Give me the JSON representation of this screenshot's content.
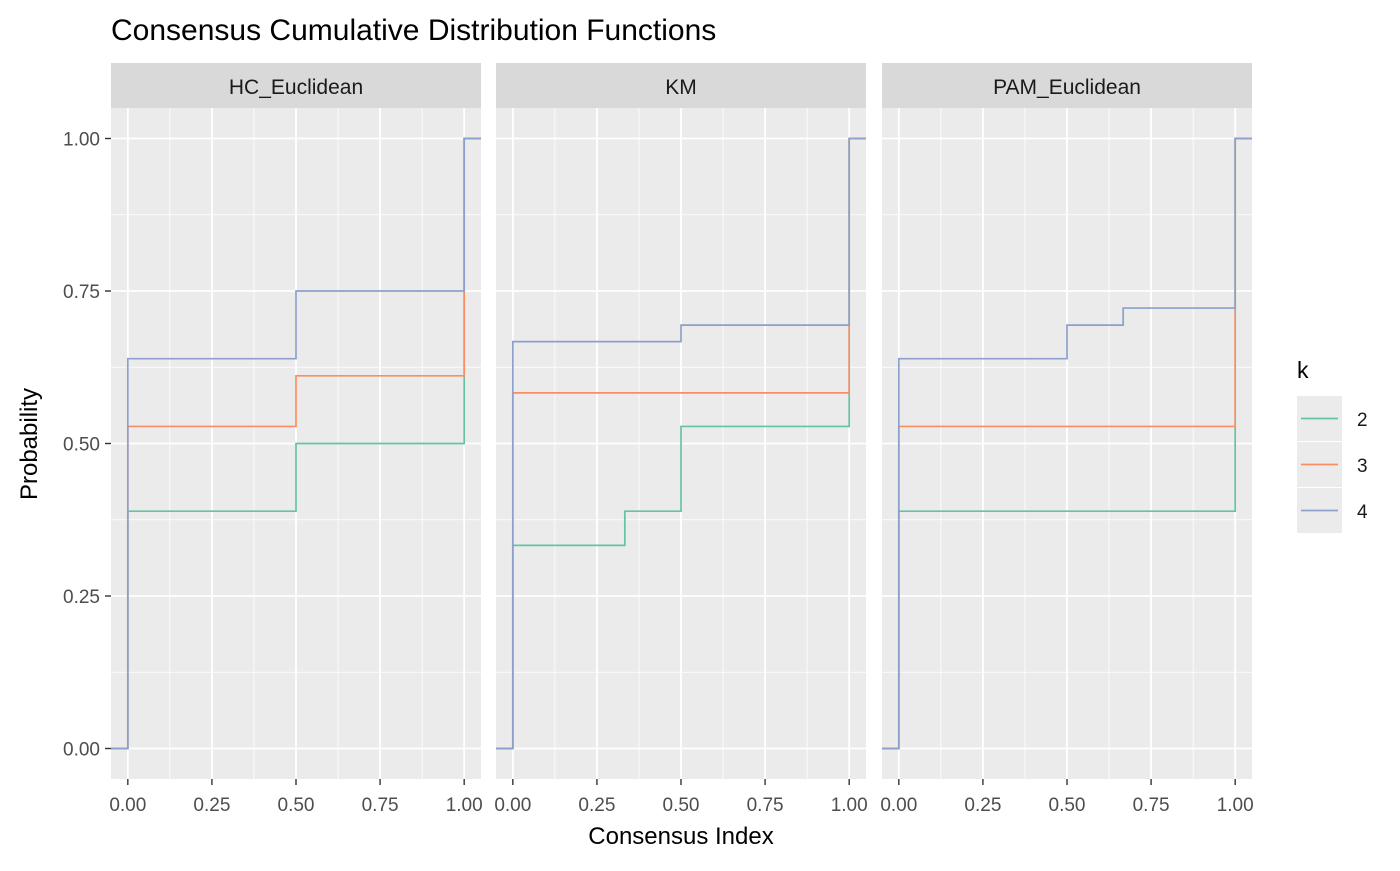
{
  "chart_data": {
    "type": "line",
    "subtype": "step",
    "title": "Consensus Cumulative Distribution Functions",
    "xlabel": "Consensus Index",
    "ylabel": "Probability",
    "xlim": [
      -0.05,
      1.05
    ],
    "ylim": [
      -0.05,
      1.05
    ],
    "x_ticks": [
      0,
      0.25,
      0.5,
      0.75,
      1
    ],
    "x_tick_labels": [
      "0.00",
      "0.25",
      "0.50",
      "0.75",
      "1.00"
    ],
    "y_ticks": [
      0,
      0.25,
      0.5,
      0.75,
      1
    ],
    "y_tick_labels": [
      "0.00",
      "0.25",
      "0.50",
      "0.75",
      "1.00"
    ],
    "grid": true,
    "legend": {
      "title": "k",
      "position": "right",
      "entries": [
        {
          "label": "2",
          "color": "#66C2A5"
        },
        {
          "label": "3",
          "color": "#FC8D62"
        },
        {
          "label": "4",
          "color": "#8DA0CB"
        }
      ]
    },
    "panels": [
      {
        "label": "HC_Euclidean",
        "series": [
          {
            "name": "2",
            "color": "#66C2A5",
            "points": [
              [
                -0.05,
                0
              ],
              [
                0,
                0.389
              ],
              [
                0.5,
                0.5
              ],
              [
                1,
                1
              ],
              [
                1.05,
                1
              ]
            ]
          },
          {
            "name": "3",
            "color": "#FC8D62",
            "points": [
              [
                -0.05,
                0
              ],
              [
                0,
                0.528
              ],
              [
                0.5,
                0.611
              ],
              [
                1,
                1
              ],
              [
                1.05,
                1
              ]
            ]
          },
          {
            "name": "4",
            "color": "#8DA0CB",
            "points": [
              [
                -0.05,
                0
              ],
              [
                0,
                0.639
              ],
              [
                0.5,
                0.75
              ],
              [
                1,
                1
              ],
              [
                1.05,
                1
              ]
            ]
          }
        ]
      },
      {
        "label": "KM",
        "series": [
          {
            "name": "2",
            "color": "#66C2A5",
            "points": [
              [
                -0.05,
                0
              ],
              [
                0,
                0.333
              ],
              [
                0.333,
                0.389
              ],
              [
                0.5,
                0.528
              ],
              [
                1,
                1
              ],
              [
                1.05,
                1
              ]
            ]
          },
          {
            "name": "3",
            "color": "#FC8D62",
            "points": [
              [
                -0.05,
                0
              ],
              [
                0,
                0.583
              ],
              [
                1,
                1
              ],
              [
                1.05,
                1
              ]
            ]
          },
          {
            "name": "4",
            "color": "#8DA0CB",
            "points": [
              [
                -0.05,
                0
              ],
              [
                0,
                0.667
              ],
              [
                0.5,
                0.694
              ],
              [
                1,
                1
              ],
              [
                1.05,
                1
              ]
            ]
          }
        ]
      },
      {
        "label": "PAM_Euclidean",
        "series": [
          {
            "name": "2",
            "color": "#66C2A5",
            "points": [
              [
                -0.05,
                0
              ],
              [
                0,
                0.389
              ],
              [
                1,
                1
              ],
              [
                1.05,
                1
              ]
            ]
          },
          {
            "name": "3",
            "color": "#FC8D62",
            "points": [
              [
                -0.05,
                0
              ],
              [
                0,
                0.528
              ],
              [
                1,
                1
              ],
              [
                1.05,
                1
              ]
            ]
          },
          {
            "name": "4",
            "color": "#8DA0CB",
            "points": [
              [
                -0.05,
                0
              ],
              [
                0,
                0.639
              ],
              [
                0.5,
                0.694
              ],
              [
                0.667,
                0.722
              ],
              [
                1,
                1
              ],
              [
                1.05,
                1
              ]
            ]
          }
        ]
      }
    ]
  }
}
